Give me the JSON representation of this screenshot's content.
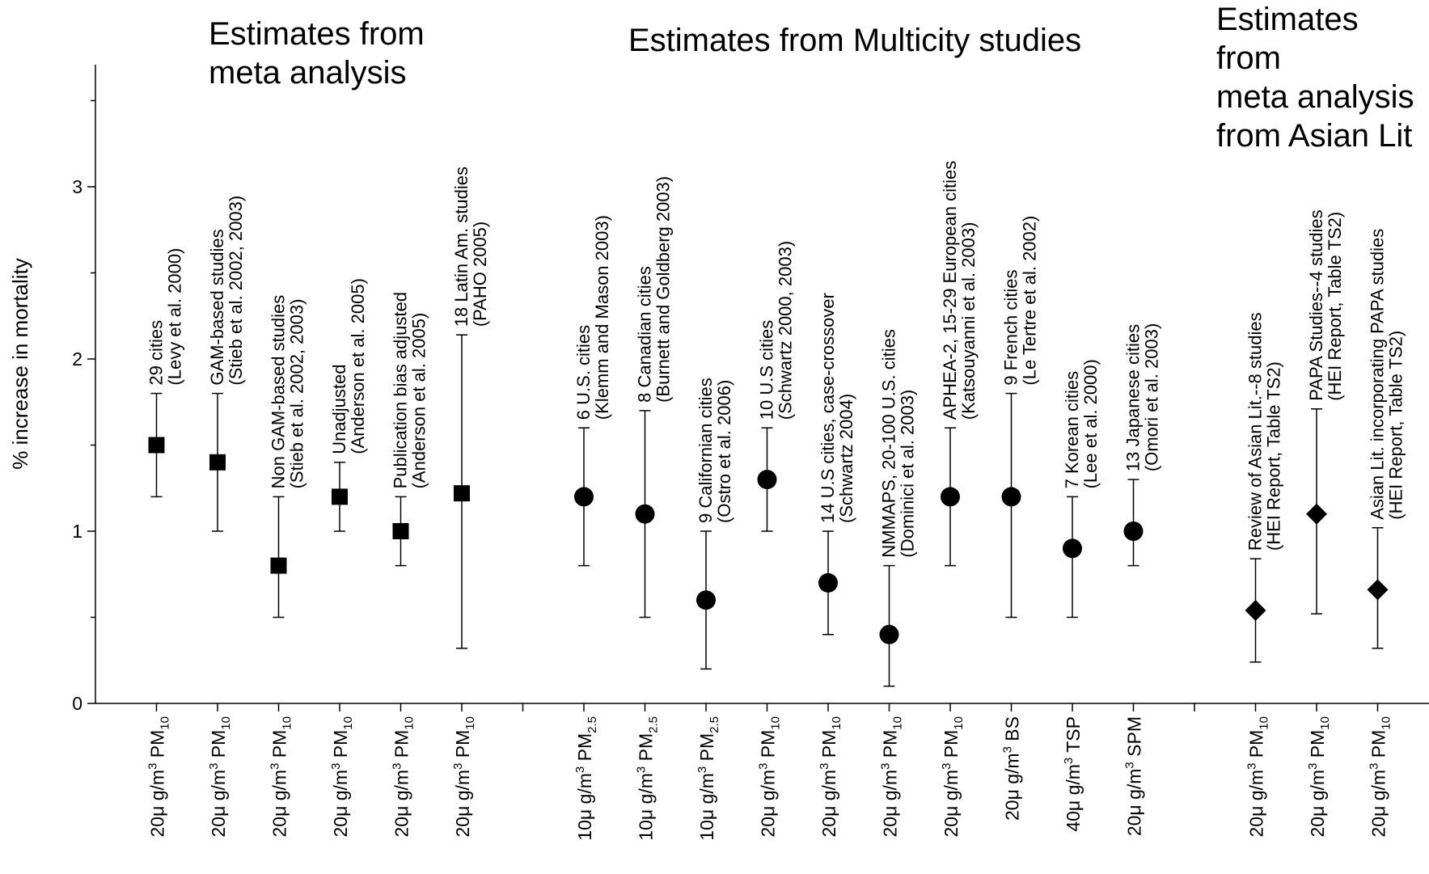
{
  "chart_data": {
    "type": "scatter",
    "ylabel": "% increase in mortality",
    "ylim": [
      0,
      3.6
    ],
    "yticks": [
      0,
      1,
      2,
      3
    ],
    "grid": false,
    "groups": [
      {
        "title": "Estimates from\nmeta analysis",
        "marker": "square",
        "x": [
          1,
          2,
          3,
          4,
          5,
          6
        ]
      },
      {
        "title": "Estimates from Multicity studies",
        "marker": "circle",
        "x": [
          8,
          9,
          10,
          11,
          12,
          13,
          14,
          15,
          16,
          17
        ]
      },
      {
        "title": "Estimates from\nmeta analysis\nfrom Asian Lit",
        "marker": "diamond",
        "x": [
          19,
          20,
          21
        ]
      }
    ],
    "points": [
      {
        "x": 1,
        "marker": "square",
        "y": 1.5,
        "low": 1.2,
        "high": 1.8,
        "label1": "29 cities",
        "label2": "(Levy et al. 2000)",
        "amount": "20",
        "unit": "g/m",
        "pollutant": "PM",
        "sub": "10"
      },
      {
        "x": 2,
        "marker": "square",
        "y": 1.4,
        "low": 1.0,
        "high": 1.8,
        "label1": "GAM-based studies",
        "label2": "(Stieb et al. 2002, 2003)",
        "amount": "20",
        "unit": "g/m",
        "pollutant": "PM",
        "sub": "10"
      },
      {
        "x": 3,
        "marker": "square",
        "y": 0.8,
        "low": 0.5,
        "high": 1.2,
        "label1": "Non GAM-based studies",
        "label2": "(Stieb et al. 2002, 2003)",
        "amount": "20",
        "unit": "g/m",
        "pollutant": "PM",
        "sub": "10"
      },
      {
        "x": 4,
        "marker": "square",
        "y": 1.2,
        "low": 1.0,
        "high": 1.4,
        "label1": "Unadjusted",
        "label2": "(Anderson et al. 2005)",
        "amount": "20",
        "unit": "g/m",
        "pollutant": "PM",
        "sub": "10"
      },
      {
        "x": 5,
        "marker": "square",
        "y": 1.0,
        "low": 0.8,
        "high": 1.2,
        "label1": "Publication bias adjusted",
        "label2": "(Anderson et al. 2005)",
        "amount": "20",
        "unit": "g/m",
        "pollutant": "PM",
        "sub": "10"
      },
      {
        "x": 6,
        "marker": "square",
        "y": 1.22,
        "low": 0.32,
        "high": 2.14,
        "label1": "18 Latin Am. studies",
        "label2": "(PAHO 2005)",
        "amount": "20",
        "unit": "g/m",
        "pollutant": "PM",
        "sub": "10"
      },
      {
        "x": 8,
        "marker": "circle",
        "y": 1.2,
        "low": 0.8,
        "high": 1.6,
        "label1": "6 U.S. cities",
        "label2": "(Klemm and Mason 2003)",
        "amount": "10",
        "unit": "g/m",
        "pollutant": "PM",
        "sub": "2.5"
      },
      {
        "x": 9,
        "marker": "circle",
        "y": 1.1,
        "low": 0.5,
        "high": 1.7,
        "label1": "8 Canadian cities",
        "label2": "(Burnett and Goldberg 2003)",
        "amount": "10",
        "unit": "g/m",
        "pollutant": "PM",
        "sub": "2.5"
      },
      {
        "x": 10,
        "marker": "circle",
        "y": 0.6,
        "low": 0.2,
        "high": 1.0,
        "label1": "9 Californian cities",
        "label2": "(Ostro et al. 2006)",
        "amount": "10",
        "unit": "g/m",
        "pollutant": "PM",
        "sub": "2.5"
      },
      {
        "x": 11,
        "marker": "circle",
        "y": 1.3,
        "low": 1.0,
        "high": 1.6,
        "label1": "10 U.S cities",
        "label2": "(Schwartz 2000, 2003)",
        "amount": "20",
        "unit": "g/m",
        "pollutant": "PM",
        "sub": "10"
      },
      {
        "x": 12,
        "marker": "circle",
        "y": 0.7,
        "low": 0.4,
        "high": 1.0,
        "label1": "14 U.S cities, case-crossover",
        "label2": "(Schwartz 2004)",
        "amount": "20",
        "unit": "g/m",
        "pollutant": "PM",
        "sub": "10"
      },
      {
        "x": 13,
        "marker": "circle",
        "y": 0.4,
        "low": 0.1,
        "high": 0.8,
        "label1": "NMMAPS, 20-100 U.S. cities",
        "label2": "(Dominici et al. 2003)",
        "amount": "20",
        "unit": "g/m",
        "pollutant": "PM",
        "sub": "10"
      },
      {
        "x": 14,
        "marker": "circle",
        "y": 1.2,
        "low": 0.8,
        "high": 1.6,
        "label1": "APHEA-2, 15-29 European cities",
        "label2": "(Katsouyanni et al. 2003)",
        "amount": "20",
        "unit": "g/m",
        "pollutant": "PM",
        "sub": "10"
      },
      {
        "x": 15,
        "marker": "circle",
        "y": 1.2,
        "low": 0.5,
        "high": 1.8,
        "label1": "9 French cities",
        "label2": "(Le Tertre et al. 2002)",
        "amount": "20",
        "unit": "g/m",
        "pollutant": "BS",
        "sub": ""
      },
      {
        "x": 16,
        "marker": "circle",
        "y": 0.9,
        "low": 0.5,
        "high": 1.2,
        "label1": "7 Korean cities",
        "label2": "(Lee et al. 2000)",
        "amount": "40",
        "unit": "g/m",
        "pollutant": "TSP",
        "sub": ""
      },
      {
        "x": 17,
        "marker": "circle",
        "y": 1.0,
        "low": 0.8,
        "high": 1.3,
        "label1": "13 Japanese cities",
        "label2": "(Omori et al. 2003)",
        "amount": "20",
        "unit": "g/m",
        "pollutant": "SPM",
        "sub": ""
      },
      {
        "x": 19,
        "marker": "diamond",
        "y": 0.54,
        "low": 0.24,
        "high": 0.84,
        "label1": "Review of Asian Lit.--8 studies",
        "label2": "(HEI Report, Table TS2)",
        "amount": "20",
        "unit": "g/m",
        "pollutant": "PM",
        "sub": "10"
      },
      {
        "x": 20,
        "marker": "diamond",
        "y": 1.1,
        "low": 0.52,
        "high": 1.71,
        "label1": "PAPA Studies--4 studies",
        "label2": "(HEI Report, Table TS2)",
        "amount": "20",
        "unit": "g/m",
        "pollutant": "PM",
        "sub": "10"
      },
      {
        "x": 21,
        "marker": "diamond",
        "y": 0.66,
        "low": 0.32,
        "high": 1.02,
        "label1": "Asian Lit. incorporating PAPA studies",
        "label2": "(HEI Report, Table TS2)",
        "amount": "20",
        "unit": "g/m",
        "pollutant": "PM",
        "sub": "10"
      }
    ]
  }
}
